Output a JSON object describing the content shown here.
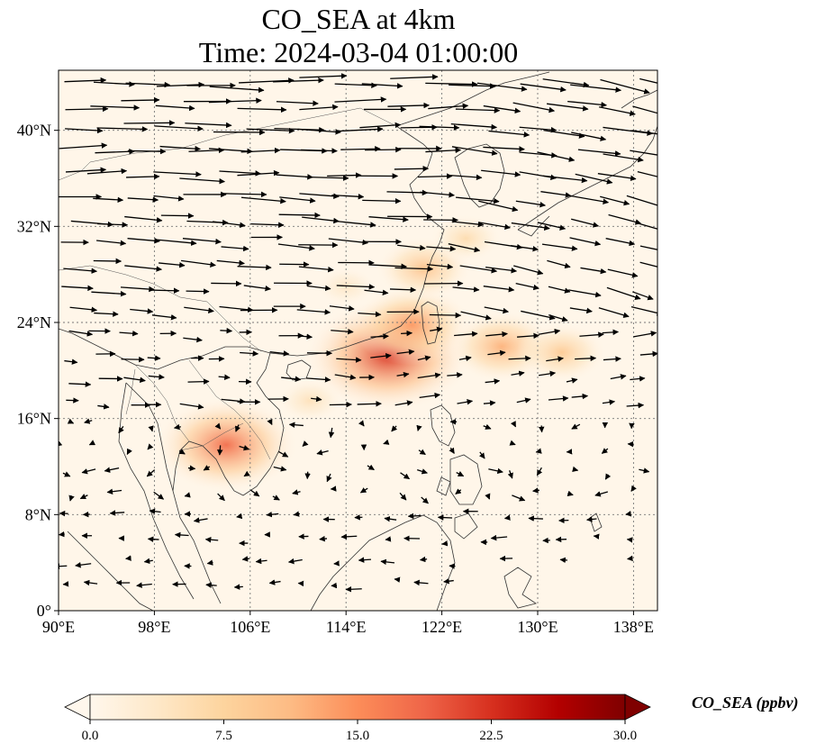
{
  "title": {
    "line1": "CO_SEA at 4km",
    "line2": "Time: 2024-03-04 01:00:00"
  },
  "map": {
    "lon_range": [
      90,
      140
    ],
    "lat_range": [
      0,
      45
    ],
    "lon_ticks": [
      90,
      98,
      106,
      114,
      122,
      130,
      138
    ],
    "lon_tick_labels": [
      "90°E",
      "98°E",
      "106°E",
      "114°E",
      "122°E",
      "130°E",
      "138°E"
    ],
    "lat_ticks": [
      0,
      8,
      16,
      24,
      32,
      40
    ],
    "lat_tick_labels": [
      "0°",
      "8°N",
      "16°N",
      "24°N",
      "32°N",
      "40°N"
    ],
    "gridlines": true,
    "field": "CO_SEA",
    "plumes": [
      {
        "lon": 117.5,
        "lat": 21.2,
        "value": 22
      },
      {
        "lon": 119.5,
        "lat": 23.8,
        "value": 14
      },
      {
        "lon": 120.5,
        "lat": 28.5,
        "value": 10
      },
      {
        "lon": 124,
        "lat": 31,
        "value": 6
      },
      {
        "lon": 127,
        "lat": 22,
        "value": 12
      },
      {
        "lon": 132,
        "lat": 21.5,
        "value": 9
      },
      {
        "lon": 104,
        "lat": 13.8,
        "value": 18
      },
      {
        "lon": 111,
        "lat": 17.5,
        "value": 5
      },
      {
        "lon": 114,
        "lat": 27,
        "value": 4
      }
    ]
  },
  "colorbar": {
    "label": "CO_SEA (ppbv)",
    "min": 0,
    "max": 30,
    "ticks": [
      0,
      7.5,
      15,
      22.5,
      30
    ],
    "tick_labels": [
      "0.0",
      "7.5",
      "15.0",
      "22.5",
      "30.0"
    ],
    "colors": [
      "#fff7ec",
      "#fee8c8",
      "#fdd49e",
      "#fdbb84",
      "#fc8d59",
      "#ef6548",
      "#d7301f",
      "#b30000",
      "#7f0000"
    ],
    "extend": "both"
  }
}
